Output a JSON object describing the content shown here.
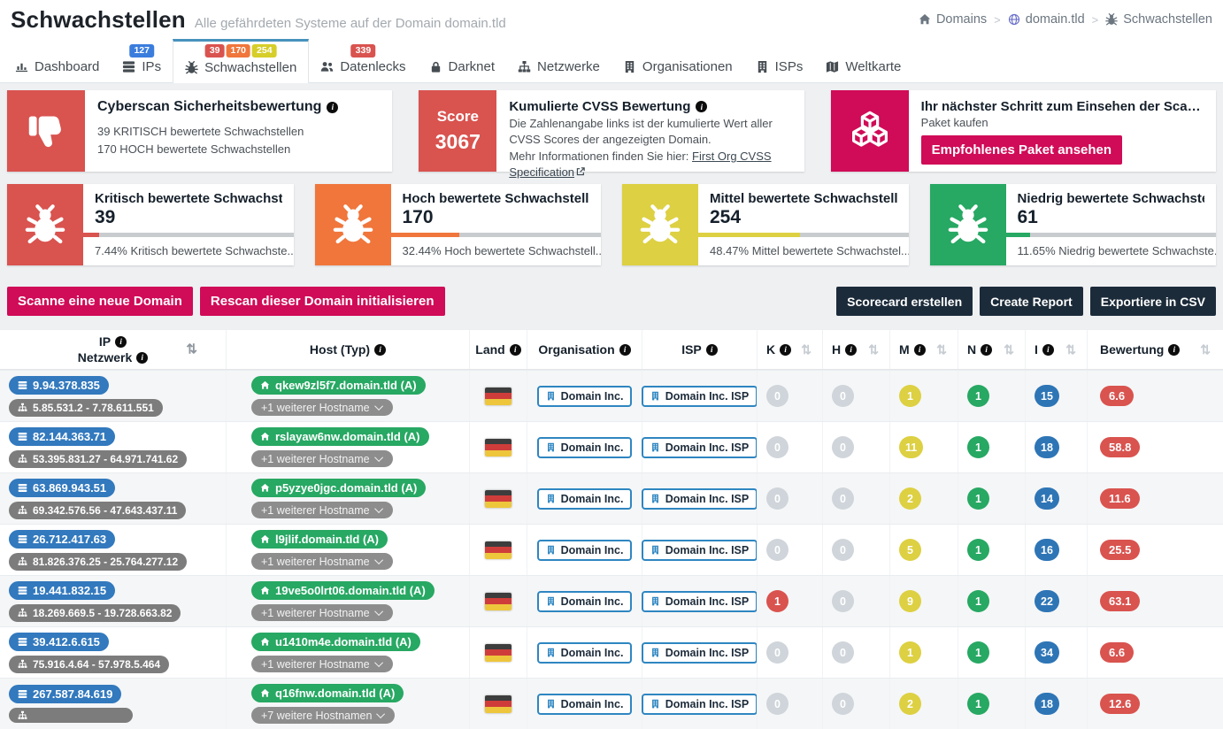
{
  "page": {
    "title": "Schwachstellen",
    "subtitle": "Alle gefährdeten Systeme auf der Domain domain.tld"
  },
  "breadcrumb": {
    "items": [
      {
        "label": "Domains",
        "icon": "home"
      },
      {
        "label": "domain.tld",
        "icon": "globe"
      },
      {
        "label": "Schwachstellen",
        "icon": "bug"
      }
    ]
  },
  "tabs": [
    {
      "id": "dashboard",
      "label": "Dashboard",
      "icon": "chart",
      "badges": [],
      "active": false
    },
    {
      "id": "ips",
      "label": "IPs",
      "icon": "server",
      "badges": [
        {
          "text": "127",
          "color": "#3b7ddd"
        }
      ],
      "active": false
    },
    {
      "id": "schwachstellen",
      "label": "Schwachstellen",
      "icon": "bug",
      "badges": [
        {
          "text": "39",
          "color": "#d9534f"
        },
        {
          "text": "170",
          "color": "#f0763b"
        },
        {
          "text": "254",
          "color": "#d6ce29"
        }
      ],
      "active": true
    },
    {
      "id": "datenlecks",
      "label": "Datenlecks",
      "icon": "users",
      "badges": [
        {
          "text": "339",
          "color": "#d9534f"
        }
      ],
      "active": false
    },
    {
      "id": "darknet",
      "label": "Darknet",
      "icon": "lock",
      "badges": [],
      "active": false
    },
    {
      "id": "netzwerke",
      "label": "Netzwerke",
      "icon": "sitemap",
      "badges": [],
      "active": false
    },
    {
      "id": "organisationen",
      "label": "Organisationen",
      "icon": "building",
      "badges": [],
      "active": false
    },
    {
      "id": "isps",
      "label": "ISPs",
      "icon": "building",
      "badges": [],
      "active": false
    },
    {
      "id": "weltkarte",
      "label": "Weltkarte",
      "icon": "map",
      "badges": [],
      "active": false
    }
  ],
  "cards": {
    "rating": {
      "title": "Cyberscan Sicherheitsbewertung",
      "line1": "39 KRITISCH bewertete Schwachstellen",
      "line2": "170 HOCH bewertete Schwachstellen"
    },
    "cvss": {
      "score_label": "Score",
      "score_value": "3067",
      "title": "Kumulierte CVSS Bewertung",
      "desc": "Die Zahlenangabe links ist der kumulierte Wert aller CVSS Scores der angezeigten Domain.",
      "more": "Mehr Informationen finden Sie hier: ",
      "link": "First Org CVSS Specification"
    },
    "upsell": {
      "title": "Ihr nächster Schritt zum Einsehen der Scan-Ergeb...",
      "subtitle": "Paket kaufen",
      "button": "Empfohlenes Paket ansehen"
    }
  },
  "stats": [
    {
      "title": "Kritisch bewertete Schwachstel...",
      "value": "39",
      "percent": 7.44,
      "caption": "7.44% Kritisch bewertete Schwachste...",
      "color": "#d9534f"
    },
    {
      "title": "Hoch bewertete Schwachstellen",
      "value": "170",
      "percent": 32.44,
      "caption": "32.44% Hoch bewertete Schwachstell...",
      "color": "#f0763b"
    },
    {
      "title": "Mittel bewertete Schwachstelle...",
      "value": "254",
      "percent": 48.47,
      "caption": "48.47% Mittel bewertete Schwachstel...",
      "color": "#ddd042"
    },
    {
      "title": "Niedrig bewertete Schwachstel...",
      "value": "61",
      "percent": 11.65,
      "caption": "11.65% Niedrig bewertete Schwachste...",
      "color": "#27a863"
    }
  ],
  "actions": {
    "scan": "Scanne eine neue Domain",
    "rescan": "Rescan dieser Domain initialisieren",
    "scorecard": "Scorecard erstellen",
    "report": "Create Report",
    "csv": "Exportiere in CSV"
  },
  "table": {
    "columns": [
      {
        "label": "IP",
        "label2": "Netzwerk"
      },
      {
        "label": "Host (Typ)"
      },
      {
        "label": "Land"
      },
      {
        "label": "Organisation"
      },
      {
        "label": "ISP"
      },
      {
        "label": "K"
      },
      {
        "label": "H"
      },
      {
        "label": "M"
      },
      {
        "label": "N"
      },
      {
        "label": "I"
      },
      {
        "label": "Bewertung"
      }
    ],
    "rows": [
      {
        "ip": "9.94.378.835",
        "network": "5.85.531.2 - 7.78.611.551",
        "host": "qkew9zl5f7.domain.tld (A)",
        "hostnames": "+1 weiterer Hostname",
        "land": "DE",
        "org": "Domain Inc.",
        "isp": "Domain Inc. ISP",
        "k": "0",
        "h": "0",
        "m": "1",
        "n": "1",
        "i": "15",
        "score": "6.6"
      },
      {
        "ip": "82.144.363.71",
        "network": "53.395.831.27 - 64.971.741.62",
        "host": "rslayaw6nw.domain.tld (A)",
        "hostnames": "+1 weiterer Hostname",
        "land": "DE",
        "org": "Domain Inc.",
        "isp": "Domain Inc. ISP",
        "k": "0",
        "h": "0",
        "m": "11",
        "n": "1",
        "i": "18",
        "score": "58.8"
      },
      {
        "ip": "63.869.943.51",
        "network": "69.342.576.56 - 47.643.437.11",
        "host": "p5yzye0jgc.domain.tld (A)",
        "hostnames": "+1 weiterer Hostname",
        "land": "DE",
        "org": "Domain Inc.",
        "isp": "Domain Inc. ISP",
        "k": "0",
        "h": "0",
        "m": "2",
        "n": "1",
        "i": "14",
        "score": "11.6"
      },
      {
        "ip": "26.712.417.63",
        "network": "81.826.376.25 - 25.764.277.12",
        "host": "l9jlif.domain.tld (A)",
        "hostnames": "+1 weiterer Hostname",
        "land": "DE",
        "org": "Domain Inc.",
        "isp": "Domain Inc. ISP",
        "k": "0",
        "h": "0",
        "m": "5",
        "n": "1",
        "i": "16",
        "score": "25.5"
      },
      {
        "ip": "19.441.832.15",
        "network": "18.269.669.5 - 19.728.663.82",
        "host": "19ve5o0lrt06.domain.tld (A)",
        "hostnames": "+1 weiterer Hostname",
        "land": "DE",
        "org": "Domain Inc.",
        "isp": "Domain Inc. ISP",
        "k": "1",
        "h": "0",
        "m": "9",
        "n": "1",
        "i": "22",
        "score": "63.1"
      },
      {
        "ip": "39.412.6.615",
        "network": "75.916.4.64 - 57.978.5.464",
        "host": "u1410m4e.domain.tld (A)",
        "hostnames": "+1 weiterer Hostname",
        "land": "DE",
        "org": "Domain Inc.",
        "isp": "Domain Inc. ISP",
        "k": "0",
        "h": "0",
        "m": "1",
        "n": "1",
        "i": "34",
        "score": "6.6"
      },
      {
        "ip": "267.587.84.619",
        "network": "",
        "host": "q16fnw.domain.tld (A)",
        "hostnames": "+7 weitere Hostnamen",
        "land": "DE",
        "org": "Domain Inc.",
        "isp": "Domain Inc. ISP",
        "k": "0",
        "h": "0",
        "m": "2",
        "n": "1",
        "i": "18",
        "score": "12.6"
      }
    ]
  }
}
